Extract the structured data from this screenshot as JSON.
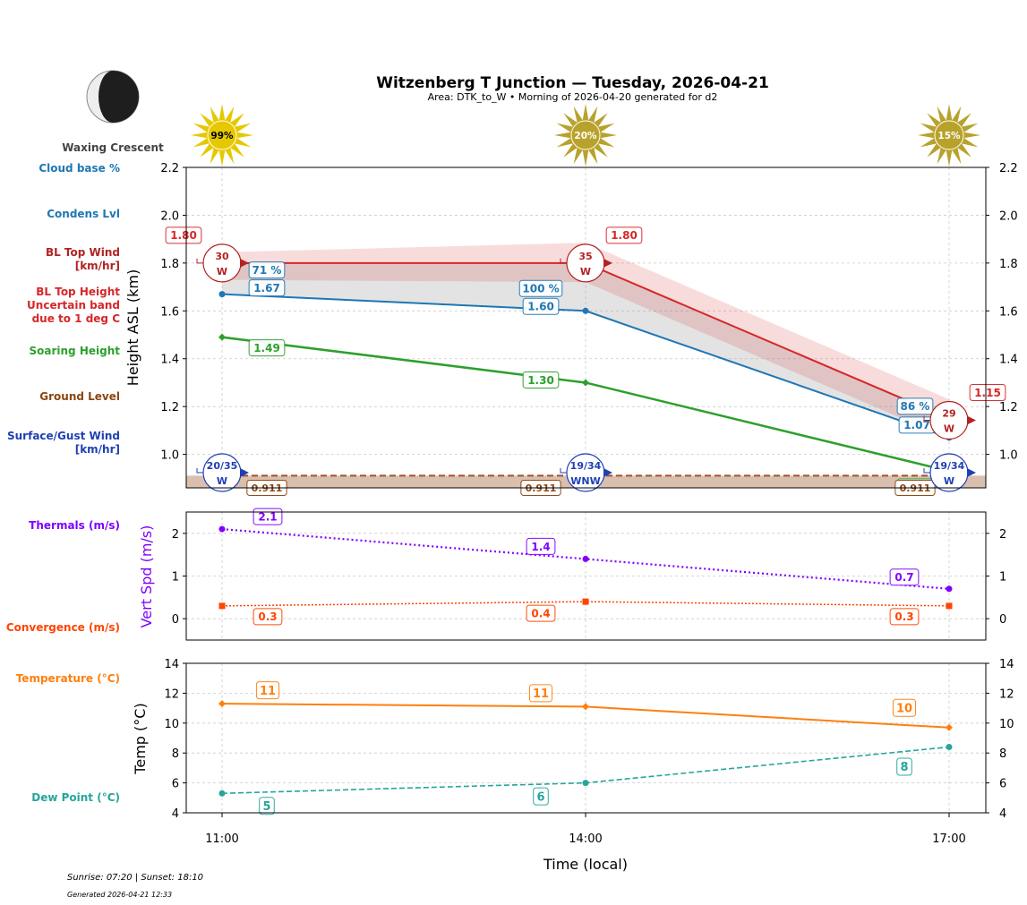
{
  "header": {
    "title": "Witzenberg T Junction — Tuesday, 2026-04-21",
    "subtitle": "Area: DTK_to_W • Morning of 2026-04-20 generated for d2",
    "moon_phase": "Waxing Crescent",
    "moon_icon": "waxing-crescent-moon-icon"
  },
  "side_labels": {
    "cloud_base": "Cloud base %",
    "condens": "Condens Lvl",
    "bl_top_wind": "BL Top Wind\n[km/hr]",
    "bl_top_height": "BL Top Height\nUncertain band\ndue to 1 deg C",
    "soaring": "Soaring Height",
    "ground": "Ground Level",
    "surface_wind": "Surface/Gust Wind\n[km/hr]",
    "thermals": "Thermals (m/s)",
    "convergence": "Convergence (m/s)",
    "temperature": "Temperature (°C)",
    "dew_point": "Dew Point (°C)"
  },
  "colors": {
    "cloud": "#1f77b4",
    "bl_top": "#d62728",
    "bl_wind": "#b22222",
    "band": "#f4c6c8",
    "soaring": "#2ca02c",
    "ground": "#a0522d",
    "surface_wind": "#1f3fb4",
    "thermals": "#8000ff",
    "convergence": "#ff4500",
    "temperature": "#ff7f0e",
    "dew_point": "#26a69a"
  },
  "footer": {
    "sun_times": "Sunrise: 07:20 | Sunset: 18:10",
    "generated": "Generated 2026-04-21 12:33"
  },
  "chart_data": [
    {
      "type": "line",
      "ylabel": "Height ASL (km)",
      "ylim": [
        0.86,
        2.2
      ],
      "yticks": [
        "1.0",
        "1.2",
        "1.4",
        "1.6",
        "1.8",
        "2.0",
        "2.2"
      ],
      "grid": true,
      "x": [
        "11:00",
        "14:00",
        "17:00"
      ],
      "sun_percent": [
        "99%",
        "20%",
        "15%"
      ],
      "series": [
        {
          "name": "BL Top Height",
          "values": [
            1.8,
            1.8,
            1.15
          ],
          "labels": [
            "1.80",
            "1.80",
            "1.15"
          ]
        },
        {
          "name": "Uncertain band",
          "upper": [
            1.845,
            1.885,
            1.23
          ],
          "lower": [
            1.73,
            1.72,
            1.065
          ]
        },
        {
          "name": "Condens Lvl",
          "values": [
            1.67,
            1.6,
            1.07
          ],
          "labels": [
            "1.67",
            "1.60",
            "1.07"
          ]
        },
        {
          "name": "Cloud base %",
          "labels": [
            "71 %",
            "100 %",
            "86 %"
          ]
        },
        {
          "name": "Soaring Height",
          "values": [
            1.49,
            1.3,
            0.93
          ],
          "labels": [
            "1.49",
            "1.30",
            ""
          ]
        },
        {
          "name": "Ground Level",
          "values": [
            0.911,
            0.911,
            0.911
          ],
          "labels": [
            "0.911",
            "0.911",
            "0.911"
          ]
        }
      ],
      "bl_top_wind": [
        {
          "speed": "30",
          "dir": "W"
        },
        {
          "speed": "35",
          "dir": "W"
        },
        {
          "speed": "29",
          "dir": "W"
        }
      ],
      "surface_wind": [
        {
          "speed": "20/35",
          "dir": "W"
        },
        {
          "speed": "19/34",
          "dir": "WNW"
        },
        {
          "speed": "19/34",
          "dir": "W"
        }
      ]
    },
    {
      "type": "line",
      "ylabel": "Vert Spd (m/s)",
      "ylim": [
        -0.5,
        2.5
      ],
      "yticks": [
        "0",
        "1",
        "2"
      ],
      "grid": true,
      "x": [
        "11:00",
        "14:00",
        "17:00"
      ],
      "series": [
        {
          "name": "Thermals (m/s)",
          "values": [
            2.1,
            1.4,
            0.7
          ],
          "labels": [
            "2.1",
            "1.4",
            "0.7"
          ]
        },
        {
          "name": "Convergence (m/s)",
          "values": [
            0.3,
            0.4,
            0.3
          ],
          "labels": [
            "0.3",
            "0.4",
            "0.3"
          ]
        }
      ]
    },
    {
      "type": "line",
      "ylabel": "Temp (°C)",
      "xlabel": "Time (local)",
      "ylim": [
        4,
        14
      ],
      "yticks": [
        "4",
        "6",
        "8",
        "10",
        "12",
        "14"
      ],
      "grid": true,
      "x": [
        "11:00",
        "14:00",
        "17:00"
      ],
      "series": [
        {
          "name": "Temperature (°C)",
          "values": [
            11.3,
            11.1,
            9.7
          ],
          "labels": [
            "11",
            "11",
            "10"
          ]
        },
        {
          "name": "Dew Point (°C)",
          "values": [
            5.3,
            6.0,
            8.4
          ],
          "labels": [
            "5",
            "6",
            "8"
          ]
        }
      ]
    }
  ]
}
